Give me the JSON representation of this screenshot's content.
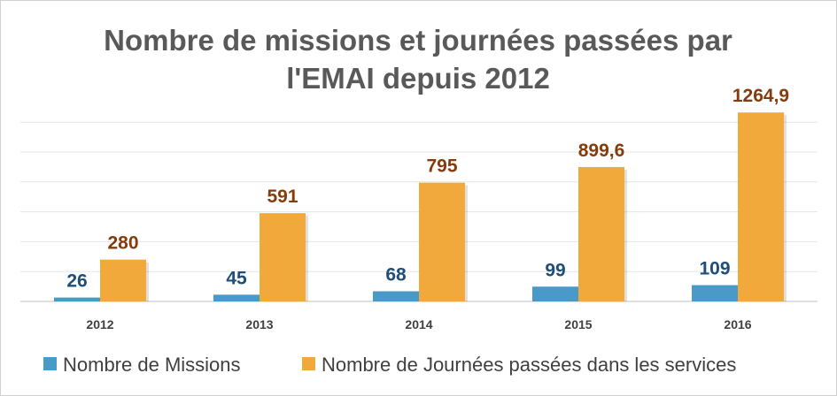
{
  "chart_data": {
    "type": "bar",
    "title": [
      "Nombre de missions et journées passées par",
      "l'EMAI depuis 2012"
    ],
    "categories": [
      "2012",
      "2013",
      "2014",
      "2015",
      "2016"
    ],
    "series": [
      {
        "name": "Nombre de Missions",
        "values": [
          26,
          45,
          68,
          99,
          109
        ],
        "labels": [
          "26",
          "45",
          "68",
          "99",
          "109"
        ],
        "color": "#4a9ac9"
      },
      {
        "name": "Nombre de Journées passées dans les services",
        "values": [
          280,
          591,
          795,
          899.6,
          1264.9
        ],
        "labels": [
          "280",
          "591",
          "795",
          "899,6",
          "1264,9"
        ],
        "color": "#f2a93b"
      }
    ],
    "ylim": [
      0,
      1400
    ],
    "grid": true,
    "legend": "bottom",
    "xlabel": "",
    "ylabel": ""
  }
}
